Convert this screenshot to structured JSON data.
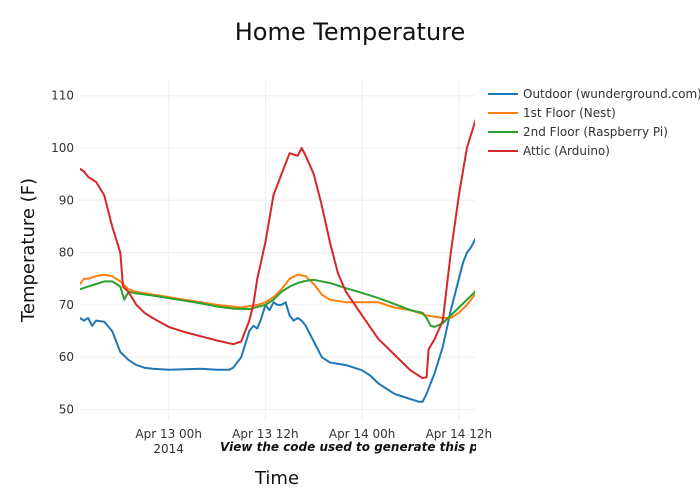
{
  "chart_data": {
    "type": "line",
    "title": "Home Temperature",
    "xlabel": "Time",
    "ylabel": "Temperature (F)",
    "xlim": [
      "2014-04-12 13:00",
      "2014-04-14 14:00"
    ],
    "ylim": [
      48,
      113
    ],
    "x_ticks": [
      {
        "x": "2014-04-13 00:00",
        "label": "Apr 13 00h",
        "sublabel": "2014"
      },
      {
        "x": "2014-04-13 12:00",
        "label": "Apr 13 12h",
        "sublabel": ""
      },
      {
        "x": "2014-04-14 00:00",
        "label": "Apr 14 00h",
        "sublabel": ""
      },
      {
        "x": "2014-04-14 12:00",
        "label": "Apr 14 12h",
        "sublabel": ""
      }
    ],
    "y_ticks": [
      50,
      60,
      70,
      80,
      90,
      100,
      110
    ],
    "grid": true,
    "legend_position": "top-right",
    "annotation": "View the code used to generate this plot",
    "series": [
      {
        "name": "Outdoor (wunderground.com)",
        "color": "#1f77b4",
        "points": [
          [
            "2014-04-12 13:00",
            67.5
          ],
          [
            "2014-04-12 13:30",
            67.0
          ],
          [
            "2014-04-12 14:00",
            67.5
          ],
          [
            "2014-04-12 14:30",
            66.0
          ],
          [
            "2014-04-12 15:00",
            67.0
          ],
          [
            "2014-04-12 16:00",
            66.8
          ],
          [
            "2014-04-12 17:00",
            65.0
          ],
          [
            "2014-04-12 18:00",
            61.0
          ],
          [
            "2014-04-12 19:00",
            59.5
          ],
          [
            "2014-04-12 20:00",
            58.5
          ],
          [
            "2014-04-12 21:00",
            58.0
          ],
          [
            "2014-04-12 22:00",
            57.8
          ],
          [
            "2014-04-13 00:00",
            57.6
          ],
          [
            "2014-04-13 02:00",
            57.7
          ],
          [
            "2014-04-13 04:00",
            57.8
          ],
          [
            "2014-04-13 06:00",
            57.6
          ],
          [
            "2014-04-13 07:30",
            57.6
          ],
          [
            "2014-04-13 08:00",
            58.0
          ],
          [
            "2014-04-13 09:00",
            60.0
          ],
          [
            "2014-04-13 10:00",
            65.0
          ],
          [
            "2014-04-13 10:30",
            66.0
          ],
          [
            "2014-04-13 11:00",
            65.5
          ],
          [
            "2014-04-13 11:30",
            67.5
          ],
          [
            "2014-04-13 12:00",
            70.0
          ],
          [
            "2014-04-13 12:30",
            69.0
          ],
          [
            "2014-04-13 13:00",
            70.5
          ],
          [
            "2014-04-13 13:30",
            70.0
          ],
          [
            "2014-04-13 14:00",
            70.0
          ],
          [
            "2014-04-13 14:30",
            70.5
          ],
          [
            "2014-04-13 15:00",
            68.0
          ],
          [
            "2014-04-13 15:30",
            67.0
          ],
          [
            "2014-04-13 16:00",
            67.5
          ],
          [
            "2014-04-13 16:30",
            67.0
          ],
          [
            "2014-04-13 17:00",
            66.0
          ],
          [
            "2014-04-13 18:00",
            63.0
          ],
          [
            "2014-04-13 19:00",
            60.0
          ],
          [
            "2014-04-13 20:00",
            59.0
          ],
          [
            "2014-04-13 22:00",
            58.5
          ],
          [
            "2014-04-14 00:00",
            57.5
          ],
          [
            "2014-04-14 01:00",
            56.5
          ],
          [
            "2014-04-14 02:00",
            55.0
          ],
          [
            "2014-04-14 03:00",
            54.0
          ],
          [
            "2014-04-14 04:00",
            53.0
          ],
          [
            "2014-04-14 05:00",
            52.5
          ],
          [
            "2014-04-14 06:00",
            52.0
          ],
          [
            "2014-04-14 07:00",
            51.5
          ],
          [
            "2014-04-14 07:30",
            51.5
          ],
          [
            "2014-04-14 08:00",
            53.0
          ],
          [
            "2014-04-14 09:00",
            57.0
          ],
          [
            "2014-04-14 10:00",
            62.0
          ],
          [
            "2014-04-14 11:00",
            69.0
          ],
          [
            "2014-04-14 12:00",
            75.0
          ],
          [
            "2014-04-14 12:30",
            78.0
          ],
          [
            "2014-04-14 13:00",
            80.0
          ],
          [
            "2014-04-14 13:30",
            81.0
          ],
          [
            "2014-04-14 14:00",
            82.5
          ],
          [
            "2014-04-14 14:30",
            83.0
          ],
          [
            "2014-04-14 15:00",
            82.0
          ]
        ]
      },
      {
        "name": "1st Floor (Nest)",
        "color": "#ff7f0e",
        "points": [
          [
            "2014-04-12 13:00",
            74.0
          ],
          [
            "2014-04-12 13:30",
            75.0
          ],
          [
            "2014-04-12 14:00",
            75.0
          ],
          [
            "2014-04-12 15:00",
            75.5
          ],
          [
            "2014-04-12 16:00",
            75.8
          ],
          [
            "2014-04-12 17:00",
            75.5
          ],
          [
            "2014-04-12 18:00",
            74.5
          ],
          [
            "2014-04-12 19:00",
            73.0
          ],
          [
            "2014-04-12 20:00",
            72.5
          ],
          [
            "2014-04-12 22:00",
            72.0
          ],
          [
            "2014-04-13 00:00",
            71.5
          ],
          [
            "2014-04-13 02:00",
            71.0
          ],
          [
            "2014-04-13 04:00",
            70.5
          ],
          [
            "2014-04-13 06:00",
            70.0
          ],
          [
            "2014-04-13 09:00",
            69.5
          ],
          [
            "2014-04-13 11:00",
            70.0
          ],
          [
            "2014-04-13 12:00",
            70.5
          ],
          [
            "2014-04-13 13:00",
            71.5
          ],
          [
            "2014-04-13 14:00",
            73.0
          ],
          [
            "2014-04-13 15:00",
            75.0
          ],
          [
            "2014-04-13 16:00",
            75.8
          ],
          [
            "2014-04-13 17:00",
            75.5
          ],
          [
            "2014-04-13 18:00",
            74.0
          ],
          [
            "2014-04-13 19:00",
            72.0
          ],
          [
            "2014-04-13 20:00",
            71.0
          ],
          [
            "2014-04-13 22:00",
            70.5
          ],
          [
            "2014-04-14 00:00",
            70.5
          ],
          [
            "2014-04-14 02:00",
            70.5
          ],
          [
            "2014-04-14 04:00",
            69.5
          ],
          [
            "2014-04-14 06:00",
            69.0
          ],
          [
            "2014-04-14 08:00",
            68.0
          ],
          [
            "2014-04-14 10:00",
            67.5
          ],
          [
            "2014-04-14 11:00",
            67.5
          ],
          [
            "2014-04-14 12:00",
            68.5
          ],
          [
            "2014-04-14 13:00",
            70.0
          ],
          [
            "2014-04-14 14:00",
            72.0
          ],
          [
            "2014-04-14 15:00",
            76.0
          ]
        ]
      },
      {
        "name": "2nd Floor (Raspberry Pi)",
        "color": "#2ca02c",
        "points": [
          [
            "2014-04-12 13:00",
            73.0
          ],
          [
            "2014-04-12 14:00",
            73.5
          ],
          [
            "2014-04-12 15:00",
            74.0
          ],
          [
            "2014-04-12 16:00",
            74.5
          ],
          [
            "2014-04-12 17:00",
            74.5
          ],
          [
            "2014-04-12 18:00",
            73.5
          ],
          [
            "2014-04-12 18:30",
            71.0
          ],
          [
            "2014-04-12 19:00",
            72.5
          ],
          [
            "2014-04-12 20:00",
            72.2
          ],
          [
            "2014-04-12 22:00",
            71.8
          ],
          [
            "2014-04-13 00:00",
            71.3
          ],
          [
            "2014-04-13 02:00",
            70.8
          ],
          [
            "2014-04-13 04:00",
            70.3
          ],
          [
            "2014-04-13 06:00",
            69.7
          ],
          [
            "2014-04-13 08:00",
            69.3
          ],
          [
            "2014-04-13 10:00",
            69.2
          ],
          [
            "2014-04-13 12:00",
            70.0
          ],
          [
            "2014-04-13 13:00",
            71.0
          ],
          [
            "2014-04-13 14:00",
            72.5
          ],
          [
            "2014-04-13 15:00",
            73.5
          ],
          [
            "2014-04-13 16:00",
            74.2
          ],
          [
            "2014-04-13 17:00",
            74.6
          ],
          [
            "2014-04-13 18:00",
            74.8
          ],
          [
            "2014-04-13 20:00",
            74.2
          ],
          [
            "2014-04-13 22:00",
            73.2
          ],
          [
            "2014-04-14 00:00",
            72.3
          ],
          [
            "2014-04-14 02:00",
            71.3
          ],
          [
            "2014-04-14 04:00",
            70.2
          ],
          [
            "2014-04-14 06:00",
            69.0
          ],
          [
            "2014-04-14 07:30",
            68.5
          ],
          [
            "2014-04-14 08:00",
            67.5
          ],
          [
            "2014-04-14 08:30",
            66.0
          ],
          [
            "2014-04-14 09:00",
            65.8
          ],
          [
            "2014-04-14 10:00",
            66.5
          ],
          [
            "2014-04-14 11:00",
            68.0
          ],
          [
            "2014-04-14 12:00",
            69.5
          ],
          [
            "2014-04-14 13:00",
            71.0
          ],
          [
            "2014-04-14 14:00",
            72.5
          ],
          [
            "2014-04-14 15:00",
            75.0
          ]
        ]
      },
      {
        "name": "Attic (Arduino)",
        "color": "#d62728",
        "points": [
          [
            "2014-04-12 13:00",
            96.0
          ],
          [
            "2014-04-12 13:30",
            95.5
          ],
          [
            "2014-04-12 14:00",
            94.5
          ],
          [
            "2014-04-12 15:00",
            93.5
          ],
          [
            "2014-04-12 16:00",
            91.0
          ],
          [
            "2014-04-12 17:00",
            85.0
          ],
          [
            "2014-04-12 18:00",
            80.0
          ],
          [
            "2014-04-12 18:20",
            73.5
          ],
          [
            "2014-04-12 19:00",
            72.5
          ],
          [
            "2014-04-12 20:00",
            70.0
          ],
          [
            "2014-04-12 21:00",
            68.5
          ],
          [
            "2014-04-12 22:00",
            67.5
          ],
          [
            "2014-04-13 00:00",
            65.8
          ],
          [
            "2014-04-13 02:00",
            64.8
          ],
          [
            "2014-04-13 04:00",
            64.0
          ],
          [
            "2014-04-13 06:00",
            63.2
          ],
          [
            "2014-04-13 08:00",
            62.5
          ],
          [
            "2014-04-13 09:00",
            63.0
          ],
          [
            "2014-04-13 10:00",
            67.0
          ],
          [
            "2014-04-13 10:30",
            70.0
          ],
          [
            "2014-04-13 11:00",
            75.0
          ],
          [
            "2014-04-13 12:00",
            82.0
          ],
          [
            "2014-04-13 13:00",
            91.0
          ],
          [
            "2014-04-13 14:00",
            95.0
          ],
          [
            "2014-04-13 15:00",
            99.0
          ],
          [
            "2014-04-13 16:00",
            98.5
          ],
          [
            "2014-04-13 16:30",
            100.0
          ],
          [
            "2014-04-13 17:00",
            98.5
          ],
          [
            "2014-04-13 18:00",
            95.0
          ],
          [
            "2014-04-13 19:00",
            89.0
          ],
          [
            "2014-04-13 20:00",
            82.0
          ],
          [
            "2014-04-13 21:00",
            76.0
          ],
          [
            "2014-04-13 22:00",
            72.5
          ],
          [
            "2014-04-14 00:00",
            68.0
          ],
          [
            "2014-04-14 02:00",
            63.5
          ],
          [
            "2014-04-14 04:00",
            60.5
          ],
          [
            "2014-04-14 05:00",
            59.0
          ],
          [
            "2014-04-14 06:00",
            57.5
          ],
          [
            "2014-04-14 07:30",
            56.0
          ],
          [
            "2014-04-14 08:00",
            56.2
          ],
          [
            "2014-04-14 08:15",
            61.5
          ],
          [
            "2014-04-14 09:00",
            63.5
          ],
          [
            "2014-04-14 10:00",
            67.0
          ],
          [
            "2014-04-14 11:00",
            80.0
          ],
          [
            "2014-04-14 12:00",
            91.0
          ],
          [
            "2014-04-14 13:00",
            100.0
          ],
          [
            "2014-04-14 14:00",
            105.0
          ],
          [
            "2014-04-14 15:00",
            109.5
          ],
          [
            "2014-04-14 15:30",
            110.5
          ],
          [
            "2014-04-14 16:00",
            110.0
          ]
        ]
      }
    ]
  }
}
